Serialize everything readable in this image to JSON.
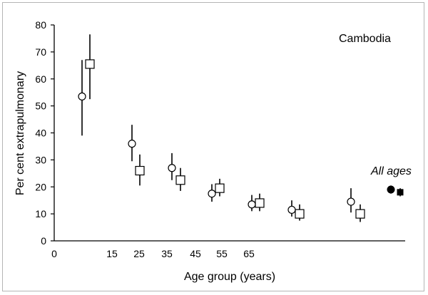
{
  "chart_data": {
    "type": "scatter",
    "title": "",
    "xlabel": "Age group (years)",
    "ylabel": "Per cent extrapulmonary",
    "ylim": [
      0,
      80
    ],
    "yticks": [
      0,
      10,
      20,
      30,
      40,
      50,
      60,
      70,
      80
    ],
    "xtick_labels": [
      "0",
      "15",
      "25",
      "35",
      "45",
      "55",
      "65"
    ],
    "grid": false,
    "legend": "none",
    "annotations": {
      "country": "Cambodia",
      "all_ages_label": "All ages"
    },
    "groups": [
      "0",
      "15",
      "25",
      "35",
      "45",
      "55",
      "65"
    ],
    "series": [
      {
        "marker": "open-circle",
        "points": [
          {
            "group": "0",
            "y": 53.5,
            "low": 39.0,
            "high": 67.0
          },
          {
            "group": "15",
            "y": 36.0,
            "low": 29.5,
            "high": 43.0
          },
          {
            "group": "25",
            "y": 27.0,
            "low": 22.5,
            "high": 32.5
          },
          {
            "group": "35",
            "y": 17.5,
            "low": 14.5,
            "high": 21.0
          },
          {
            "group": "45",
            "y": 13.5,
            "low": 11.0,
            "high": 17.0
          },
          {
            "group": "55",
            "y": 11.5,
            "low": 9.0,
            "high": 15.0
          },
          {
            "group": "65",
            "y": 14.5,
            "low": 10.5,
            "high": 19.5
          }
        ]
      },
      {
        "marker": "open-square",
        "points": [
          {
            "group": "0",
            "y": 65.5,
            "low": 52.5,
            "high": 76.5
          },
          {
            "group": "15",
            "y": 26.0,
            "low": 20.5,
            "high": 32.0
          },
          {
            "group": "25",
            "y": 22.5,
            "low": 18.5,
            "high": 27.0
          },
          {
            "group": "35",
            "y": 19.5,
            "low": 16.5,
            "high": 23.0
          },
          {
            "group": "45",
            "y": 14.0,
            "low": 11.0,
            "high": 17.5
          },
          {
            "group": "55",
            "y": 10.0,
            "low": 7.5,
            "high": 13.5
          },
          {
            "group": "65",
            "y": 10.0,
            "low": 7.0,
            "high": 13.5
          }
        ]
      },
      {
        "marker": "filled-circle",
        "points": [
          {
            "group": "All ages",
            "y": 19.0,
            "low": 17.5,
            "high": 20.5
          }
        ]
      },
      {
        "marker": "filled-square",
        "points": [
          {
            "group": "All ages",
            "y": 18.0,
            "low": 16.5,
            "high": 19.5
          }
        ]
      }
    ]
  }
}
